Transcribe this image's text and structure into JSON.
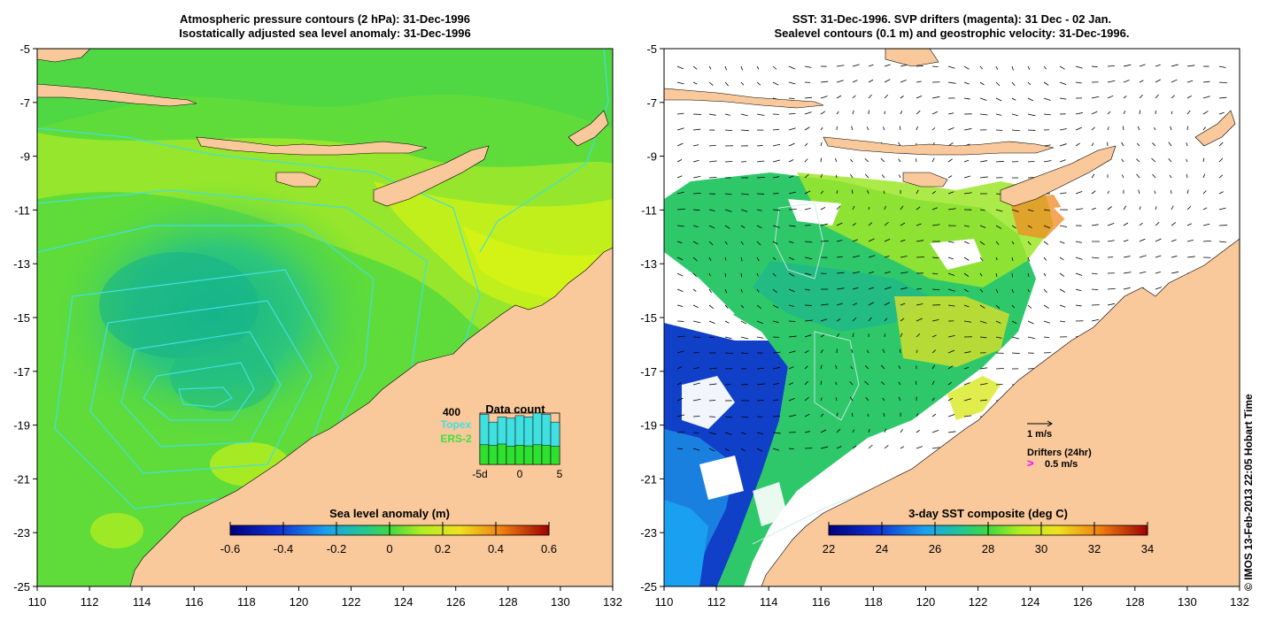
{
  "left_title": {
    "line1": "Atmospheric pressure contours (2 hPa): 31-Dec-1996",
    "line2": "Isostatically adjusted sea level anomaly: 31-Dec-1996"
  },
  "right_title": {
    "line1": "SST: 31-Dec-1996. SVP drifters (magenta): 31 Dec - 02 Jan.",
    "line2": "Sealevel contours (0.1 m) and geostrophic velocity: 31-Dec-1996."
  },
  "lon_labels": [
    "110",
    "112",
    "114",
    "116",
    "118",
    "120",
    "122",
    "124",
    "126",
    "128",
    "130",
    "132"
  ],
  "lat_labels": [
    "-5",
    "-7",
    "-9",
    "-11",
    "-13",
    "-15",
    "-17",
    "-19",
    "-21",
    "-23",
    "-25"
  ],
  "left_map": {
    "colorbar_title": "Sea level anomaly (m)",
    "colorbar_ticks": [
      "-0.6",
      "-0.4",
      "-0.2",
      "0",
      "0.2",
      "0.4",
      "0.6"
    ],
    "data_count": {
      "title": "Data count",
      "max_label": "400",
      "topex_label": "Topex",
      "ers_label": "ERS-2",
      "x_ticks": [
        "-5d",
        "0",
        "5"
      ],
      "topex_values": [
        390,
        330,
        370,
        360,
        380,
        370,
        400,
        390,
        330
      ],
      "ers_values": [
        260,
        250,
        270,
        240,
        255,
        245,
        260,
        250,
        240
      ]
    }
  },
  "right_map": {
    "colorbar_title": "3-day SST composite (deg C)",
    "colorbar_ticks": [
      "22",
      "24",
      "26",
      "28",
      "30",
      "32",
      "34"
    ],
    "velocity_scale_label": "1 m/s",
    "drifters_label": "Drifters (24hr)",
    "drifter_scale_label": "0.5 m/s"
  },
  "credit": "© IMOS 13-Feb-2013 22:05 Hobart Time",
  "colors": {
    "land": "#f9c89b",
    "ocean_green": "#5fdc3a",
    "ocean_yellowgreen": "#b8ee1e",
    "teal": "#22c585",
    "cyan": "#40e0e0",
    "magenta": "#ff00ff"
  }
}
